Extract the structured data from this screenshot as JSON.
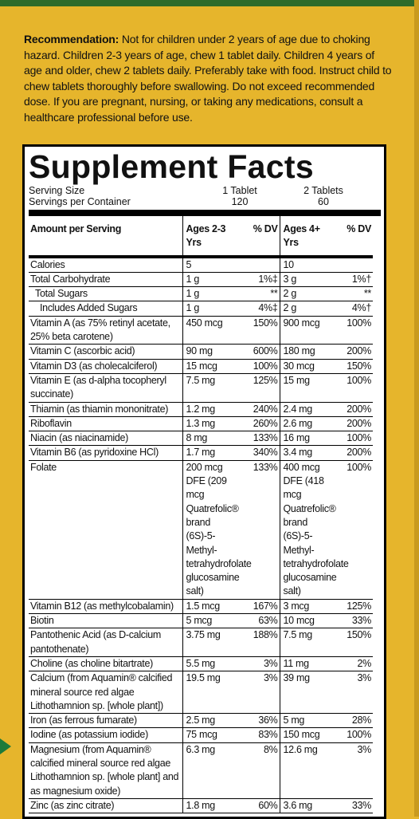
{
  "recommendation": {
    "label": "Recommendation:",
    "text": "Not for children under 2 years of age due to choking hazard. Children 2-3 years of age, chew 1 tablet daily. Children 4 years of age and older, chew 2 tablets daily. Preferably take with food. Instruct child to chew tablets thoroughly before swallowing. Do not exceed recommended dose. If you are pregnant, nursing, or taking any medications, consult a healthcare professional before use."
  },
  "facts": {
    "title": "Supplement Facts",
    "serving_size": {
      "label": "Serving Size",
      "col1": "1 Tablet",
      "col2": "2 Tablets"
    },
    "servings_per_container": {
      "label": "Servings per Container",
      "col1": "120",
      "col2": "60"
    },
    "header": {
      "name": "Amount per Serving",
      "amt1": "Ages 2-3 Yrs",
      "dv1": "% DV",
      "amt2": "Ages 4+ Yrs",
      "dv2": "% DV"
    },
    "rows": [
      {
        "name": "Calories",
        "amt1": "5",
        "amt2": "10"
      },
      {
        "name": "Total Carbohydrate",
        "amt1": "1 g",
        "dv1": "1%‡",
        "amt2": "3 g",
        "dv2": "1%†"
      },
      {
        "name": "Total Sugars",
        "amt1": "1 g",
        "dv1": "**",
        "amt2": "2 g",
        "dv2": "**",
        "indent": 1
      },
      {
        "name": "Includes Added Sugars",
        "amt1": "1 g",
        "dv1": "4%‡",
        "amt2": "2 g",
        "dv2": "4%†",
        "indent": 2
      },
      {
        "name": "Vitamin A (as 75% retinyl acetate, 25% beta carotene)",
        "amt1": "450 mcg",
        "dv1": "150%",
        "amt2": "900 mcg",
        "dv2": "100%"
      },
      {
        "name": "Vitamin C (ascorbic acid)",
        "amt1": "90 mg",
        "dv1": "600%",
        "amt2": "180 mg",
        "dv2": "200%"
      },
      {
        "name": "Vitamin D3 (as cholecalciferol)",
        "amt1": "15 mcg",
        "dv1": "100%",
        "amt2": "30 mcg",
        "dv2": "150%"
      },
      {
        "name": "Vitamin E (as d-alpha tocopheryl succinate)",
        "amt1": "7.5 mg",
        "dv1": "125%",
        "amt2": "15 mg",
        "dv2": "100%"
      },
      {
        "name": "Thiamin (as thiamin mononitrate)",
        "amt1": "1.2 mg",
        "dv1": "240%",
        "amt2": "2.4 mg",
        "dv2": "200%"
      },
      {
        "name": "Riboflavin",
        "amt1": "1.3 mg",
        "dv1": "260%",
        "amt2": "2.6 mg",
        "dv2": "200%"
      },
      {
        "name": "Niacin (as niacinamide)",
        "amt1": "8 mg",
        "dv1": "133%",
        "amt2": "16 mg",
        "dv2": "100%"
      },
      {
        "name": "Vitamin B6 (as pyridoxine HCl)",
        "amt1": "1.7 mg",
        "dv1": "340%",
        "amt2": "3.4 mg",
        "dv2": "200%"
      },
      {
        "name": "Folate",
        "amt1": "200 mcg DFE (209 mcg Quatrefolic® brand (6S)-5-Methyl-tetrahydrofolate glucosamine salt)",
        "dv1": "133%",
        "amt2": "400 mcg DFE (418 mcg Quatrefolic® brand (6S)-5-Methyl-tetrahydrofolate glucosamine salt)",
        "dv2": "100%"
      },
      {
        "name": "Vitamin B12 (as methylcobalamin)",
        "amt1": "1.5 mcg",
        "dv1": "167%",
        "amt2": "3 mcg",
        "dv2": "125%"
      },
      {
        "name": "Biotin",
        "amt1": "5 mcg",
        "dv1": "63%",
        "amt2": "10 mcg",
        "dv2": "33%"
      },
      {
        "name": "Pantothenic Acid (as D-calcium pantothenate)",
        "amt1": "3.75 mg",
        "dv1": "188%",
        "amt2": "7.5 mg",
        "dv2": "150%"
      },
      {
        "name": "Choline (as choline bitartrate)",
        "amt1": "5.5 mg",
        "dv1": "3%",
        "amt2": "11 mg",
        "dv2": "2%"
      },
      {
        "name": "Calcium (from Aquamin® calcified mineral source red algae Lithothamnion sp. [whole plant])",
        "amt1": "19.5 mg",
        "dv1": "3%",
        "amt2": "39 mg",
        "dv2": "3%"
      },
      {
        "name": "Iron (as ferrous fumarate)",
        "amt1": "2.5 mg",
        "dv1": "36%",
        "amt2": "5 mg",
        "dv2": "28%"
      },
      {
        "name": "Iodine (as potassium iodide)",
        "amt1": "75 mcg",
        "dv1": "83%",
        "amt2": "150 mcg",
        "dv2": "100%"
      },
      {
        "name": "Magnesium (from Aquamin® calcified mineral source red algae Lithothamnion sp. [whole plant] and as magnesium oxide)",
        "amt1": "6.3 mg",
        "dv1": "8%",
        "amt2": "12.6 mg",
        "dv2": "3%"
      },
      {
        "name": "Zinc (as zinc citrate)",
        "amt1": "1.8 mg",
        "dv1": "60%",
        "amt2": "3.6 mg",
        "dv2": "33%"
      }
    ]
  }
}
